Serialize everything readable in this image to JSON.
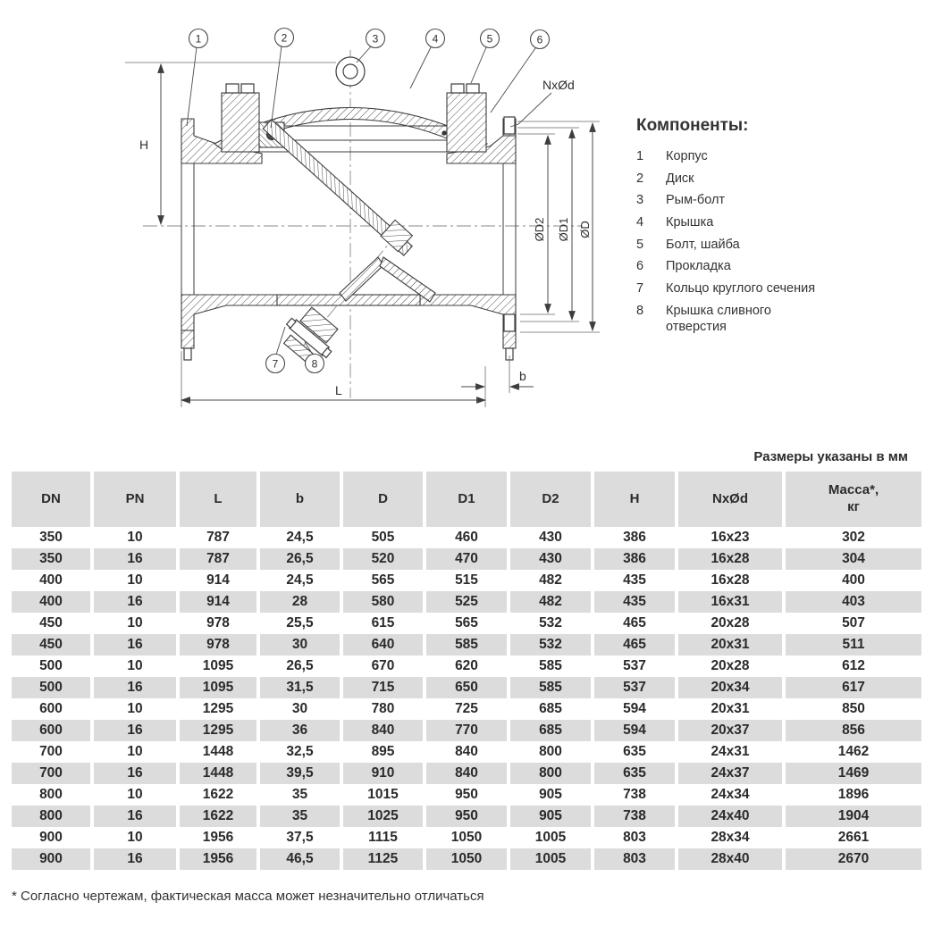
{
  "page": {
    "units_note": "Размеры указаны в мм",
    "footnote": "* Согласно чертежам, фактическая масса может незначительно отличаться"
  },
  "components": {
    "title": "Компоненты:",
    "items": [
      {
        "num": "1",
        "label": "Корпус"
      },
      {
        "num": "2",
        "label": "Диск"
      },
      {
        "num": "3",
        "label": "Рым-болт"
      },
      {
        "num": "4",
        "label": "Крышка"
      },
      {
        "num": "5",
        "label": "Болт, шайба"
      },
      {
        "num": "6",
        "label": "Прокладка"
      },
      {
        "num": "7",
        "label": "Кольцо круглого сечения"
      },
      {
        "num": "8",
        "label": "Крышка сливного отверстия"
      }
    ]
  },
  "drawing": {
    "callouts": [
      "1",
      "2",
      "3",
      "4",
      "5",
      "6",
      "7",
      "8"
    ],
    "dims": {
      "H": "H",
      "L": "L",
      "b": "b",
      "D2": "ØD2",
      "D1": "ØD1",
      "D": "ØD",
      "NxOd": "NxØd"
    }
  },
  "table": {
    "headers": [
      "DN",
      "PN",
      "L",
      "b",
      "D",
      "D1",
      "D2",
      "H",
      "NxØd",
      "Масса*,\nкг"
    ],
    "rows": [
      [
        "350",
        "10",
        "787",
        "24,5",
        "505",
        "460",
        "430",
        "386",
        "16x23",
        "302"
      ],
      [
        "350",
        "16",
        "787",
        "26,5",
        "520",
        "470",
        "430",
        "386",
        "16x28",
        "304"
      ],
      [
        "400",
        "10",
        "914",
        "24,5",
        "565",
        "515",
        "482",
        "435",
        "16x28",
        "400"
      ],
      [
        "400",
        "16",
        "914",
        "28",
        "580",
        "525",
        "482",
        "435",
        "16x31",
        "403"
      ],
      [
        "450",
        "10",
        "978",
        "25,5",
        "615",
        "565",
        "532",
        "465",
        "20x28",
        "507"
      ],
      [
        "450",
        "16",
        "978",
        "30",
        "640",
        "585",
        "532",
        "465",
        "20x31",
        "511"
      ],
      [
        "500",
        "10",
        "1095",
        "26,5",
        "670",
        "620",
        "585",
        "537",
        "20x28",
        "612"
      ],
      [
        "500",
        "16",
        "1095",
        "31,5",
        "715",
        "650",
        "585",
        "537",
        "20x34",
        "617"
      ],
      [
        "600",
        "10",
        "1295",
        "30",
        "780",
        "725",
        "685",
        "594",
        "20x31",
        "850"
      ],
      [
        "600",
        "16",
        "1295",
        "36",
        "840",
        "770",
        "685",
        "594",
        "20x37",
        "856"
      ],
      [
        "700",
        "10",
        "1448",
        "32,5",
        "895",
        "840",
        "800",
        "635",
        "24x31",
        "1462"
      ],
      [
        "700",
        "16",
        "1448",
        "39,5",
        "910",
        "840",
        "800",
        "635",
        "24x37",
        "1469"
      ],
      [
        "800",
        "10",
        "1622",
        "35",
        "1015",
        "950",
        "905",
        "738",
        "24x34",
        "1896"
      ],
      [
        "800",
        "16",
        "1622",
        "35",
        "1025",
        "950",
        "905",
        "738",
        "24x40",
        "1904"
      ],
      [
        "900",
        "10",
        "1956",
        "37,5",
        "1115",
        "1050",
        "1005",
        "803",
        "28x34",
        "2661"
      ],
      [
        "900",
        "16",
        "1956",
        "46,5",
        "1125",
        "1050",
        "1005",
        "803",
        "28x40",
        "2670"
      ]
    ]
  }
}
